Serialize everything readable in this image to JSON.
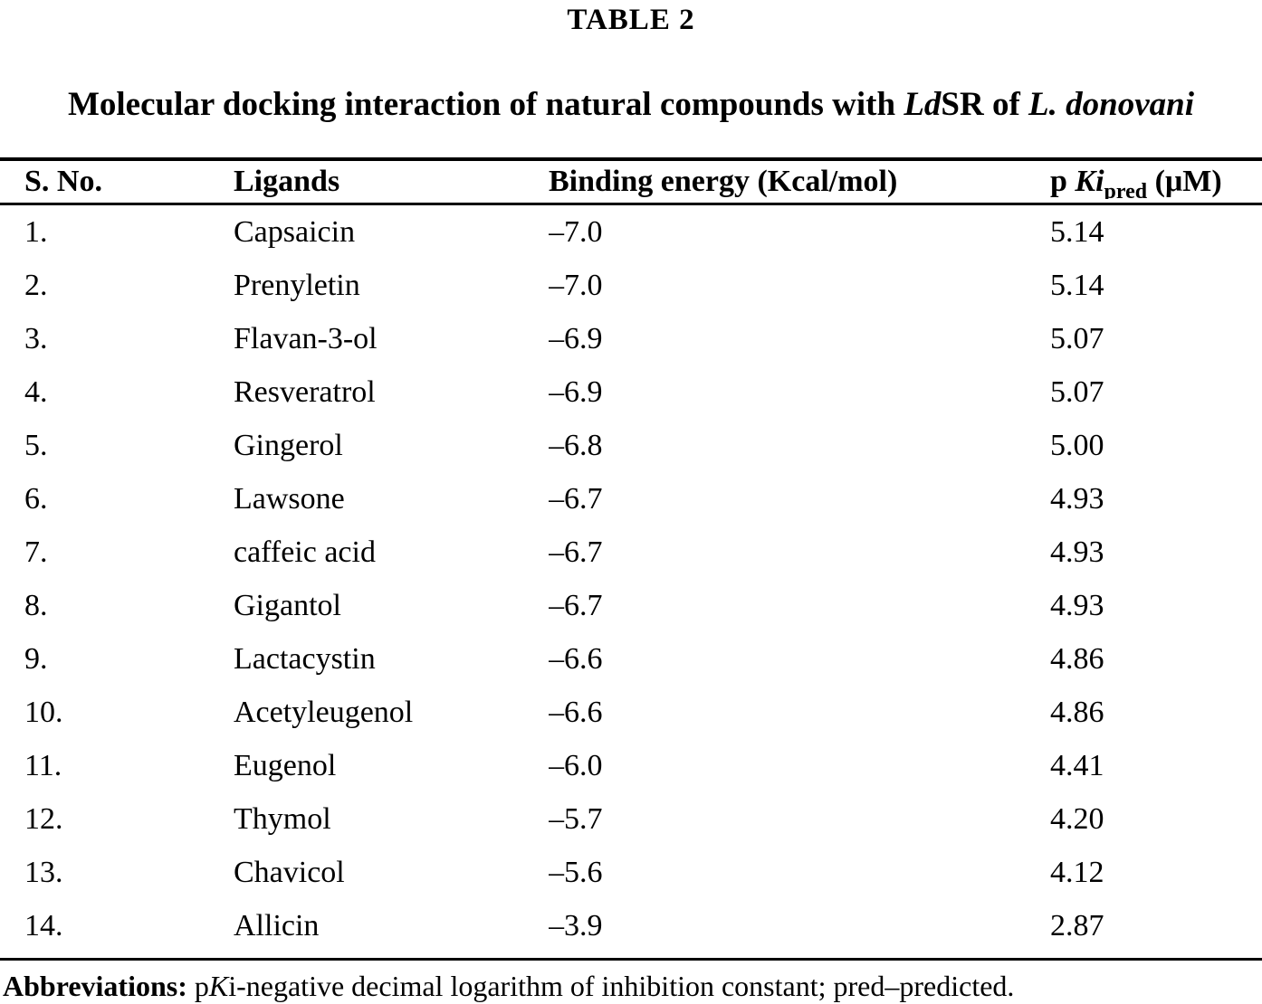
{
  "label": "TABLE 2",
  "title": {
    "part1": "Molecular docking interaction of natural compounds with ",
    "italic1": "Ld",
    "part2": "SR of ",
    "italic2": "L. donovani"
  },
  "columns": {
    "sno": "S. No.",
    "ligands": "Ligands",
    "energy": "Binding energy (Kcal/mol)",
    "pki": {
      "p": "p ",
      "ki": "Ki",
      "sub": "pred",
      "unit": " (μM)"
    }
  },
  "table": {
    "rows": [
      {
        "no": "1.",
        "ligand": "Capsaicin",
        "energy": "–7.0",
        "pki": "5.14"
      },
      {
        "no": "2.",
        "ligand": "Prenyletin",
        "energy": "–7.0",
        "pki": "5.14"
      },
      {
        "no": "3.",
        "ligand": "Flavan-3-ol",
        "energy": "–6.9",
        "pki": "5.07"
      },
      {
        "no": "4.",
        "ligand": "Resveratrol",
        "energy": "–6.9",
        "pki": "5.07"
      },
      {
        "no": "5.",
        "ligand": "Gingerol",
        "energy": "–6.8",
        "pki": "5.00"
      },
      {
        "no": "6.",
        "ligand": "Lawsone",
        "energy": "–6.7",
        "pki": "4.93"
      },
      {
        "no": "7.",
        "ligand": "caffeic acid",
        "energy": "–6.7",
        "pki": "4.93"
      },
      {
        "no": "8.",
        "ligand": "Gigantol",
        "energy": "–6.7",
        "pki": "4.93"
      },
      {
        "no": "9.",
        "ligand": "Lactacystin",
        "energy": "–6.6",
        "pki": "4.86"
      },
      {
        "no": "10.",
        "ligand": "Acetyleugenol",
        "energy": "–6.6",
        "pki": "4.86"
      },
      {
        "no": "11.",
        "ligand": "Eugenol",
        "energy": "–6.0",
        "pki": "4.41"
      },
      {
        "no": "12.",
        "ligand": "Thymol",
        "energy": "–5.7",
        "pki": "4.20"
      },
      {
        "no": "13.",
        "ligand": "Chavicol",
        "energy": "–5.6",
        "pki": "4.12"
      },
      {
        "no": "14.",
        "ligand": "Allicin",
        "energy": "–3.9",
        "pki": "2.87"
      }
    ]
  },
  "footnote": {
    "label": "Abbreviations:",
    "part1": " p",
    "k": "K",
    "part2": "i-negative decimal logarithm of inhibition constant; pred–predicted."
  },
  "colors": {
    "text": "#000000",
    "background": "#ffffff",
    "rule": "#000000"
  }
}
